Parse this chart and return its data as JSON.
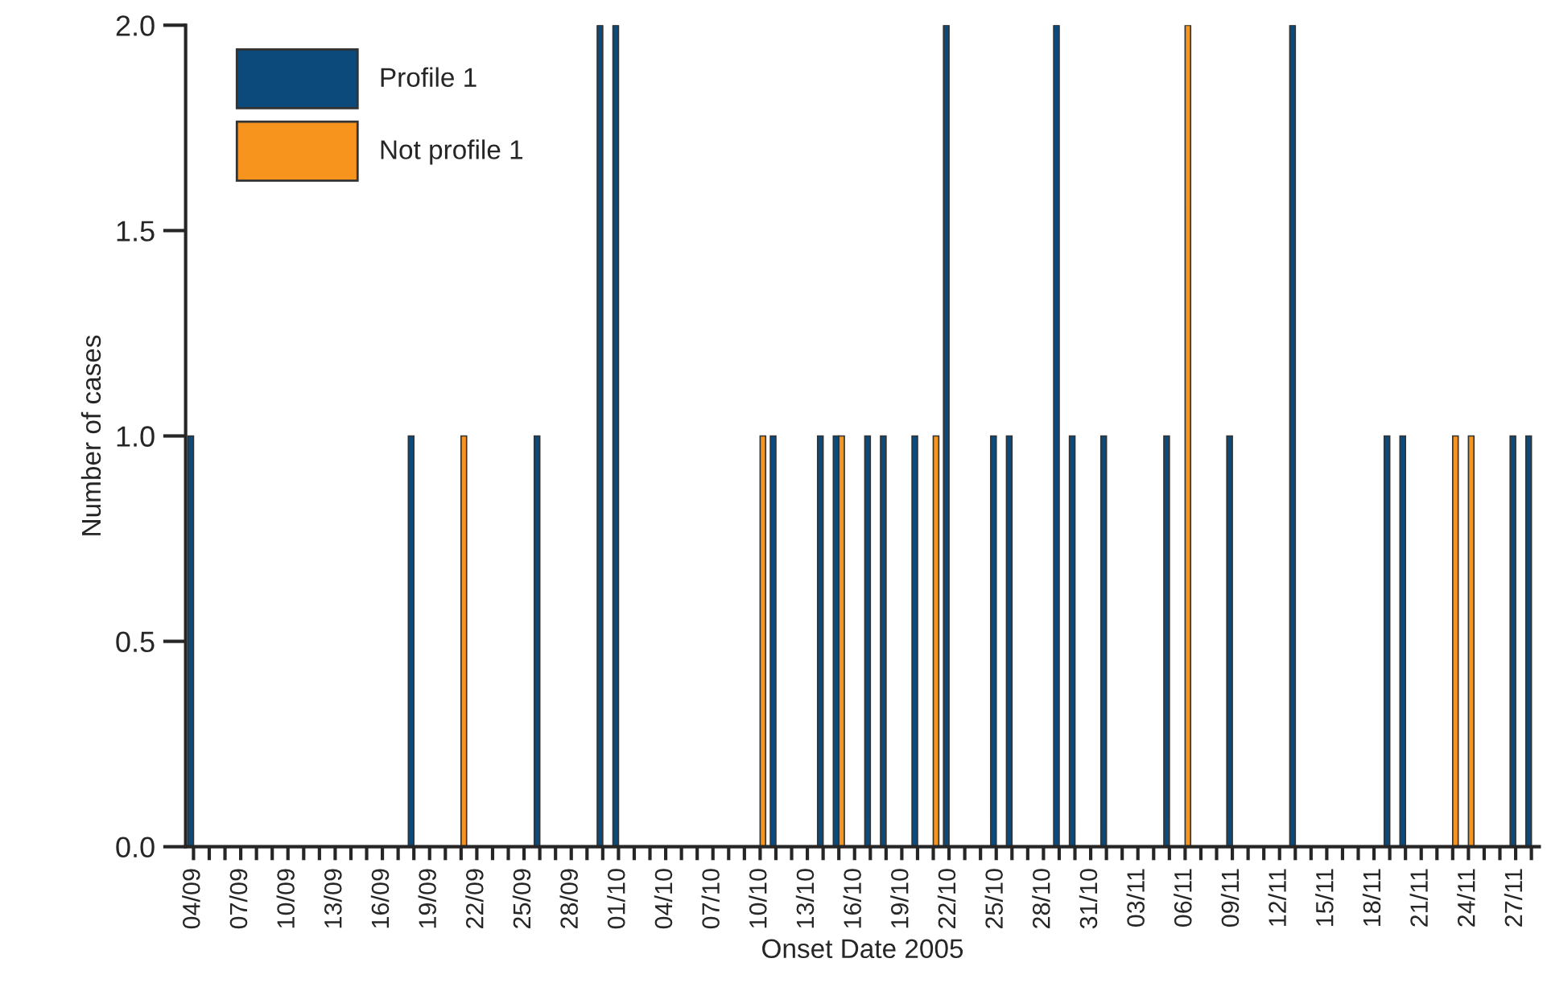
{
  "chart_data": {
    "type": "bar",
    "xlabel": "Onset Date 2005",
    "ylabel": "Number of cases",
    "categories": [
      "04/09",
      null,
      null,
      "07/09",
      null,
      null,
      "10/09",
      null,
      null,
      "13/09",
      null,
      null,
      "16/09",
      null,
      null,
      "19/09",
      null,
      null,
      "22/09",
      null,
      null,
      "25/09",
      null,
      null,
      "28/09",
      null,
      null,
      "01/10",
      null,
      null,
      "04/10",
      null,
      null,
      "07/10",
      null,
      null,
      "10/10",
      null,
      null,
      "13/10",
      null,
      null,
      "16/10",
      null,
      null,
      "19/10",
      null,
      null,
      "22/10",
      null,
      null,
      "25/10",
      null,
      null,
      "28/10",
      null,
      null,
      "31/10",
      null,
      null,
      "03/11",
      null,
      null,
      "06/11",
      null,
      null,
      "09/11",
      null,
      null,
      "12/11",
      null,
      null,
      "15/11",
      null,
      null,
      "18/11",
      null,
      null,
      "21/11",
      null,
      null,
      "24/11",
      null,
      null,
      "27/11",
      null
    ],
    "series": [
      {
        "name": "Profile 1",
        "color": "#0b4a7a",
        "values": [
          1,
          0,
          0,
          0,
          0,
          0,
          0,
          0,
          0,
          0,
          0,
          0,
          0,
          0,
          1,
          0,
          0,
          0,
          0,
          0,
          0,
          0,
          1,
          0,
          0,
          0,
          2,
          2,
          0,
          0,
          0,
          0,
          0,
          0,
          0,
          0,
          0,
          1,
          0,
          0,
          1,
          1,
          0,
          1,
          1,
          0,
          1,
          0,
          2,
          0,
          0,
          1,
          1,
          0,
          0,
          2,
          1,
          0,
          1,
          0,
          0,
          0,
          1,
          0,
          0,
          0,
          1,
          0,
          0,
          0,
          2,
          0,
          0,
          0,
          0,
          0,
          1,
          1,
          0,
          0,
          0,
          0,
          0,
          0,
          1,
          1
        ]
      },
      {
        "name": "Not profile 1",
        "color": "#f7941d",
        "values": [
          0,
          0,
          0,
          0,
          0,
          0,
          0,
          0,
          0,
          0,
          0,
          0,
          0,
          0,
          0,
          0,
          0,
          1,
          0,
          0,
          0,
          0,
          0,
          0,
          0,
          0,
          0,
          0,
          0,
          0,
          0,
          0,
          0,
          0,
          0,
          0,
          1,
          0,
          0,
          0,
          0,
          1,
          0,
          0,
          0,
          0,
          0,
          1,
          0,
          0,
          0,
          0,
          0,
          0,
          0,
          0,
          0,
          0,
          0,
          0,
          0,
          0,
          0,
          2,
          0,
          0,
          0,
          0,
          0,
          0,
          0,
          0,
          0,
          0,
          0,
          0,
          0,
          0,
          0,
          0,
          1,
          1,
          0,
          0,
          0,
          0
        ]
      }
    ],
    "ylim": [
      0,
      2
    ],
    "yticks": [
      {
        "value": 0,
        "label": "0.0"
      },
      {
        "value": 0.5,
        "label": "0.5"
      },
      {
        "value": 1,
        "label": "1.0"
      },
      {
        "value": 1.5,
        "label": "1.5"
      },
      {
        "value": 2,
        "label": "2.0"
      }
    ],
    "grid": false,
    "legend": "top left"
  }
}
